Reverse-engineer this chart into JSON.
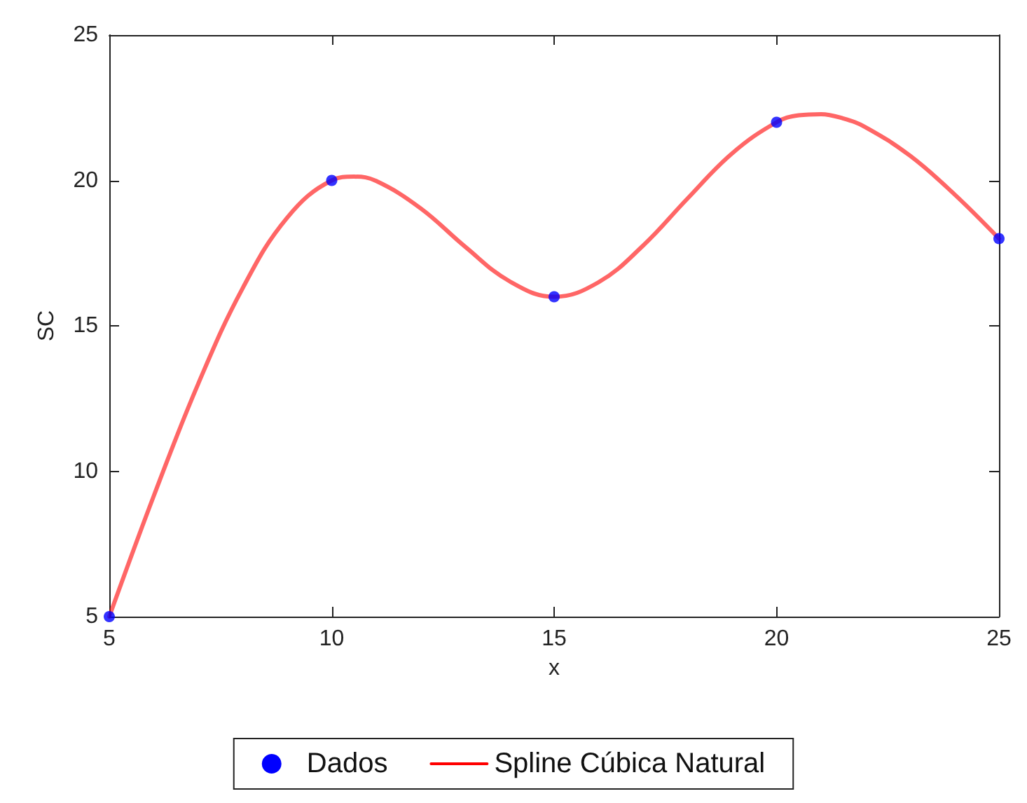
{
  "chart_data": {
    "type": "scatter",
    "xlabel": "x",
    "ylabel": "SC",
    "xlim": [
      5,
      25
    ],
    "ylim": [
      5,
      25
    ],
    "xticks": [
      5,
      10,
      15,
      20,
      25
    ],
    "yticks": [
      5,
      10,
      15,
      20,
      25
    ],
    "grid": false,
    "legend": "bottom",
    "series": [
      {
        "name": "Dados",
        "color": "#0000ff",
        "marker": "circle",
        "x": [
          5,
          10,
          15,
          20,
          25
        ],
        "values": [
          5,
          20,
          16,
          22,
          18
        ]
      },
      {
        "name": "Spline Cúbica Natural",
        "type": "line",
        "color": "#ff0000",
        "marker": "none",
        "line_style": "solid",
        "x": [
          5,
          6,
          7,
          8,
          9,
          10,
          10.5,
          11,
          12,
          13,
          14,
          15,
          16,
          17,
          18,
          19,
          20,
          20.5,
          21,
          21.5,
          22,
          23,
          24,
          25
        ],
        "values": [
          5,
          9.15,
          13.01,
          16.3,
          18.72,
          20,
          20.13,
          19.98,
          19.04,
          17.72,
          16.53,
          16,
          16.5,
          17.76,
          19.38,
          20.93,
          22,
          22.24,
          22.28,
          22.13,
          21.83,
          20.85,
          19.52,
          18
        ]
      }
    ]
  }
}
